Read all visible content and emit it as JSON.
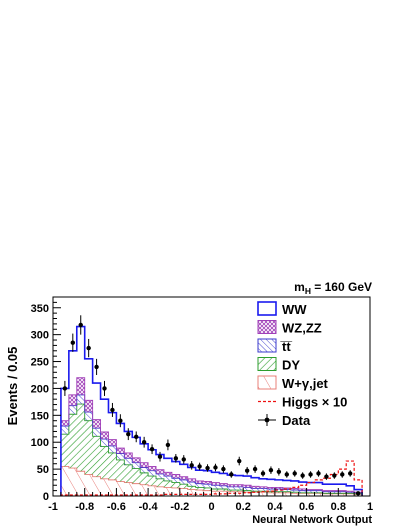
{
  "chart_data": {
    "type": "bar",
    "annotation": {
      "main": "m",
      "sub": "H",
      "rest": " = 160 GeV"
    },
    "xlabel": "Neural Network Output",
    "ylabel": "Events / 0.05",
    "xlim": [
      -1,
      1
    ],
    "ylim": [
      0,
      370
    ],
    "x_ticks": [
      -1,
      -0.8,
      -0.6,
      -0.4,
      -0.2,
      0,
      0.2,
      0.4,
      0.6,
      0.8,
      1
    ],
    "x_tick_labels": [
      "-1",
      "-0.8",
      "-0.6",
      "-0.4",
      "-0.2",
      "0",
      "0.2",
      "0.4",
      "0.6",
      "0.8",
      "1"
    ],
    "y_ticks": [
      0,
      50,
      100,
      150,
      200,
      250,
      300,
      350
    ],
    "y_tick_labels": [
      "0",
      "50",
      "100",
      "150",
      "200",
      "250",
      "300",
      "350"
    ],
    "bin_edges": [
      -0.95,
      -0.9,
      -0.85,
      -0.8,
      -0.75,
      -0.7,
      -0.65,
      -0.6,
      -0.55,
      -0.5,
      -0.45,
      -0.4,
      -0.35,
      -0.3,
      -0.25,
      -0.2,
      -0.15,
      -0.1,
      -0.05,
      0.0,
      0.05,
      0.1,
      0.15,
      0.2,
      0.25,
      0.3,
      0.35,
      0.4,
      0.45,
      0.5,
      0.55,
      0.6,
      0.65,
      0.7,
      0.75,
      0.8,
      0.85,
      0.9,
      0.95
    ],
    "legend_position": "top-right",
    "series": [
      {
        "name": "W+γ,jet",
        "kind": "stack",
        "color": "#e8807a",
        "pattern": "hatch-red",
        "values": [
          55,
          52,
          46,
          40,
          36,
          32,
          30,
          27,
          25,
          23,
          21,
          19,
          17,
          16,
          15,
          14,
          12,
          11,
          10,
          9,
          9,
          8,
          8,
          7,
          7,
          7,
          6,
          6,
          6,
          5,
          5,
          5,
          5,
          4,
          4,
          4,
          4,
          3
        ]
      },
      {
        "name": "DY",
        "kind": "stack",
        "color": "#2e9e2e",
        "pattern": "hatch-green",
        "values": [
          60,
          100,
          125,
          100,
          75,
          60,
          50,
          40,
          33,
          28,
          22,
          18,
          15,
          12,
          10,
          8,
          6,
          5,
          5,
          4,
          4,
          3,
          3,
          3,
          2,
          2,
          2,
          2,
          2,
          2,
          1,
          1,
          1,
          1,
          1,
          1,
          1,
          1
        ]
      },
      {
        "name": "t̅t̅",
        "kind": "stack",
        "color": "#3a3acc",
        "pattern": "hatch-blue",
        "values": [
          15,
          16,
          17,
          16,
          15,
          14,
          13,
          12,
          12,
          11,
          10,
          10,
          9,
          9,
          8,
          8,
          8,
          7,
          7,
          7,
          6,
          6,
          6,
          6,
          5,
          5,
          5,
          5,
          4,
          4,
          4,
          4,
          4,
          3,
          3,
          3,
          2,
          2
        ]
      },
      {
        "name": "WZ,ZZ",
        "kind": "stack",
        "color": "#a040b8",
        "pattern": "hatch-purple",
        "values": [
          10,
          20,
          32,
          22,
          16,
          13,
          12,
          10,
          10,
          9,
          9,
          8,
          8,
          7,
          7,
          6,
          6,
          5,
          5,
          5,
          4,
          4,
          4,
          4,
          4,
          3,
          3,
          3,
          3,
          3,
          3,
          2,
          2,
          2,
          2,
          2,
          2,
          1
        ]
      },
      {
        "name": "WW",
        "kind": "stack",
        "color": "#1a1aee",
        "pattern": "none",
        "values": [
          60,
          82,
          95,
          77,
          68,
          61,
          50,
          46,
          40,
          38,
          35,
          31,
          28,
          26,
          24,
          23,
          21,
          20,
          20,
          19,
          19,
          18,
          17,
          17,
          16,
          15,
          15,
          14,
          14,
          14,
          13,
          13,
          13,
          12,
          12,
          12,
          10,
          5
        ]
      },
      {
        "name": "Higgs × 10",
        "kind": "overlay",
        "color": "#ee1111",
        "pattern": "dashed",
        "values": [
          2,
          2,
          2,
          2,
          2,
          2,
          2,
          2,
          2,
          2,
          2,
          2,
          2,
          3,
          3,
          3,
          3,
          3,
          3,
          4,
          4,
          5,
          5,
          6,
          7,
          8,
          9,
          11,
          13,
          16,
          20,
          25,
          30,
          33,
          40,
          50,
          65,
          30
        ]
      },
      {
        "name": "Data",
        "kind": "points",
        "color": "#000000",
        "values": [
          200,
          285,
          318,
          275,
          240,
          200,
          160,
          140,
          115,
          110,
          100,
          87,
          73,
          95,
          70,
          68,
          57,
          55,
          52,
          53,
          50,
          40,
          65,
          47,
          50,
          42,
          48,
          45,
          40,
          42,
          38,
          40,
          42,
          36,
          38,
          40,
          42,
          5
        ],
        "errors": [
          14,
          17,
          18,
          17,
          15,
          14,
          13,
          12,
          11,
          10,
          10,
          9,
          9,
          10,
          8,
          8,
          8,
          7,
          7,
          7,
          7,
          6,
          8,
          7,
          7,
          6,
          7,
          7,
          6,
          6,
          6,
          6,
          6,
          6,
          6,
          6,
          6,
          2
        ]
      }
    ]
  }
}
